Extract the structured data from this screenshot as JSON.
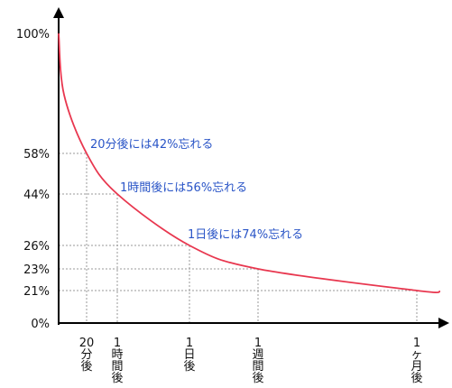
{
  "chart_data": {
    "type": "line",
    "title": "",
    "xlabel": "",
    "ylabel": "",
    "ylim": [
      0,
      100
    ],
    "grid": "dotted guide lines at labeled points",
    "colors": {
      "curve": "#e8374f",
      "annotation": "#2a55c7",
      "axis": "#000000",
      "guide": "#9a9a9a"
    },
    "y_ticks": [
      {
        "value": 100,
        "label": "100%"
      },
      {
        "value": 58,
        "label": "58%"
      },
      {
        "value": 44,
        "label": "44%"
      },
      {
        "value": 26,
        "label": "26%"
      },
      {
        "value": 23,
        "label": "23%"
      },
      {
        "value": 21,
        "label": "21%"
      },
      {
        "value": 0,
        "label": "0%"
      }
    ],
    "x_ticks": [
      {
        "label": "20分後"
      },
      {
        "label": "1時間後"
      },
      {
        "label": "1日後"
      },
      {
        "label": "1週間後"
      },
      {
        "label": "1ヶ月後"
      }
    ],
    "series": [
      {
        "points": [
          {
            "x": "0",
            "y": 100
          },
          {
            "x": "20分後",
            "y": 58
          },
          {
            "x": "1時間後",
            "y": 44
          },
          {
            "x": "1日後",
            "y": 26
          },
          {
            "x": "1週間後",
            "y": 23
          },
          {
            "x": "1ヶ月後",
            "y": 21
          }
        ]
      }
    ],
    "annotations": [
      {
        "text": "20分後には42%忘れる"
      },
      {
        "text": "1時間後には56%忘れる"
      },
      {
        "text": "1日後には74%忘れる"
      }
    ]
  }
}
